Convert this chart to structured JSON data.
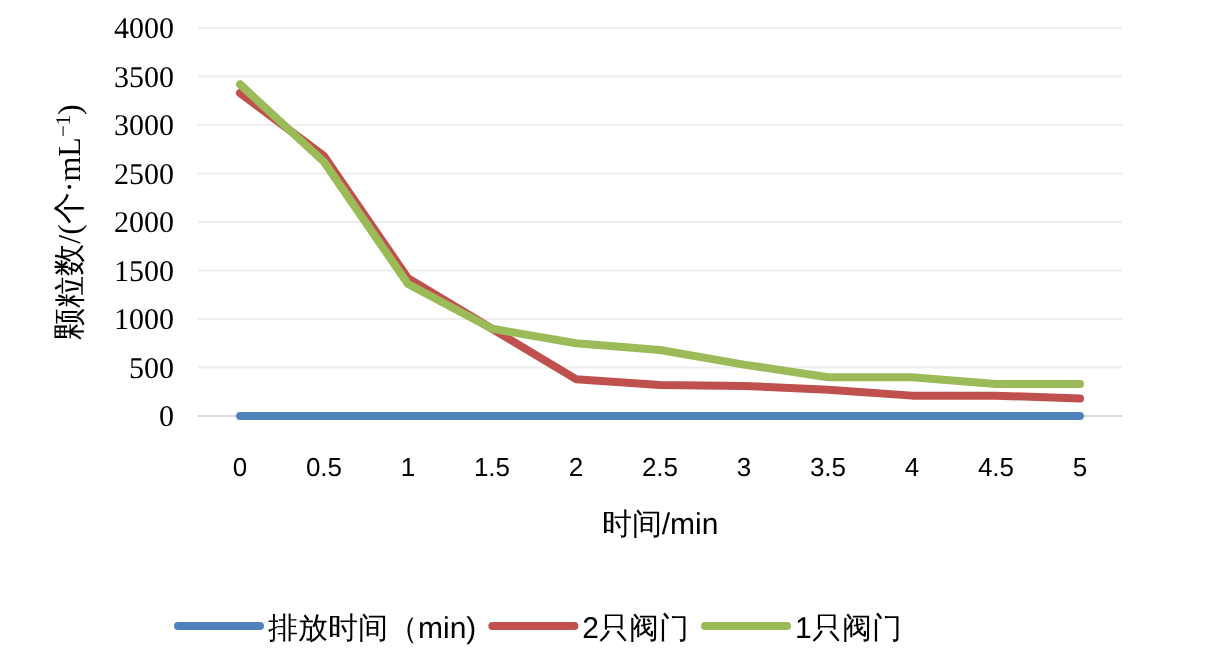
{
  "chart_data": {
    "type": "line",
    "xlabel": "时间/min",
    "ylabel": "颗粒数/(个·mL$^{−1}$)",
    "categories": [
      "0",
      "0.5",
      "1",
      "1.5",
      "2",
      "2.5",
      "3",
      "3.5",
      "4",
      "4.5",
      "5"
    ],
    "series": [
      {
        "name": "排放时间（min)",
        "color": "#4f81bd",
        "values": [
          0,
          0,
          0,
          0,
          0,
          0,
          0,
          0,
          0,
          0,
          0
        ]
      },
      {
        "name": "2只阀门",
        "color": "#c0504d",
        "values": [
          3330,
          2680,
          1420,
          900,
          380,
          320,
          310,
          270,
          210,
          210,
          180
        ]
      },
      {
        "name": "1只阀门",
        "color": "#9bbb59",
        "values": [
          3420,
          2620,
          1360,
          900,
          750,
          680,
          530,
          400,
          400,
          330,
          330
        ]
      }
    ],
    "ylim": [
      0,
      4000
    ],
    "yticks": [
      0,
      500,
      1000,
      1500,
      2000,
      2500,
      3000,
      3500,
      4000
    ],
    "grid": "y",
    "legend": "bottom",
    "marker": "none",
    "line_style": "solid"
  }
}
